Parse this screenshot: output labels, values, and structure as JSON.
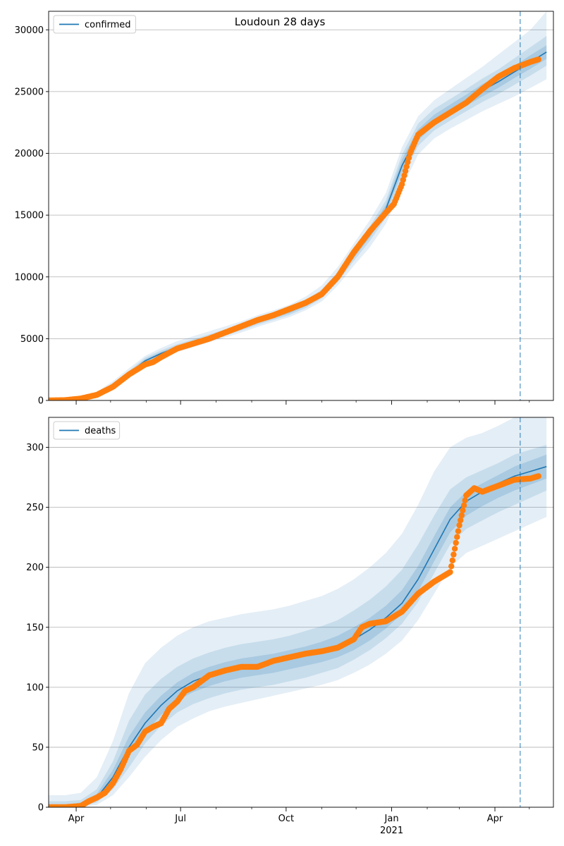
{
  "figure": {
    "title": "Loudoun 28 days"
  },
  "chart_data": [
    {
      "type": "line",
      "name": "confirmed-panel",
      "legend": [
        "confirmed"
      ],
      "legend_position": "top-left",
      "grid": "horizontal",
      "ylim": [
        0,
        31500
      ],
      "yticks": [
        0,
        5000,
        10000,
        15000,
        20000,
        25000,
        30000
      ],
      "model": {
        "name": "confirmed",
        "color": "#1f77b4",
        "x": [
          "2020-03-08",
          "2020-03-22",
          "2020-04-05",
          "2020-04-19",
          "2020-05-03",
          "2020-05-17",
          "2020-05-31",
          "2020-06-14",
          "2020-06-28",
          "2020-07-12",
          "2020-07-26",
          "2020-08-09",
          "2020-08-23",
          "2020-09-06",
          "2020-09-20",
          "2020-10-04",
          "2020-10-18",
          "2020-11-01",
          "2020-11-15",
          "2020-11-29",
          "2020-12-13",
          "2020-12-27",
          "2021-01-10",
          "2021-01-24",
          "2021-02-07",
          "2021-02-21",
          "2021-03-07",
          "2021-03-21",
          "2021-04-04",
          "2021-04-18",
          "2021-05-02",
          "2021-05-16"
        ],
        "y": [
          0,
          10,
          150,
          500,
          1200,
          2200,
          3200,
          3800,
          4300,
          4700,
          5100,
          5500,
          5900,
          6400,
          6800,
          7200,
          7800,
          8600,
          10000,
          11800,
          13500,
          15500,
          19000,
          21500,
          22700,
          23500,
          24300,
          25100,
          25800,
          26600,
          27400,
          28200
        ]
      },
      "observed": {
        "name": "observed",
        "color": "#ff7f0e",
        "x": [
          "2020-03-08",
          "2020-03-22",
          "2020-04-05",
          "2020-04-19",
          "2020-05-03",
          "2020-05-17",
          "2020-05-31",
          "2020-06-07",
          "2020-06-14",
          "2020-06-28",
          "2020-07-12",
          "2020-07-26",
          "2020-08-09",
          "2020-08-23",
          "2020-09-06",
          "2020-09-20",
          "2020-10-04",
          "2020-10-18",
          "2020-11-01",
          "2020-11-15",
          "2020-11-29",
          "2020-12-13",
          "2020-12-27",
          "2021-01-03",
          "2021-01-10",
          "2021-01-17",
          "2021-01-24",
          "2021-02-07",
          "2021-02-21",
          "2021-03-07",
          "2021-03-21",
          "2021-04-04",
          "2021-04-18",
          "2021-05-02",
          "2021-05-09"
        ],
        "y": [
          0,
          20,
          150,
          450,
          1100,
          2100,
          2900,
          3100,
          3500,
          4200,
          4600,
          5000,
          5500,
          6000,
          6500,
          6900,
          7400,
          7900,
          8600,
          10000,
          12000,
          13700,
          15200,
          15900,
          17500,
          20000,
          21500,
          22500,
          23300,
          24100,
          25200,
          26200,
          26900,
          27400,
          27600
        ]
      },
      "bands": [
        {
          "label": "outer",
          "lo": [
            0,
            0,
            80,
            380,
            1000,
            1900,
            2800,
            3400,
            3900,
            4300,
            4700,
            5100,
            5500,
            5950,
            6350,
            6750,
            7300,
            8000,
            9300,
            10900,
            12400,
            14300,
            17200,
            19900,
            21200,
            22000,
            22700,
            23400,
            24000,
            24600,
            25300,
            26000
          ],
          "hi": [
            150,
            200,
            300,
            700,
            1550,
            2600,
            3600,
            4250,
            4800,
            5200,
            5600,
            6000,
            6400,
            6900,
            7300,
            7750,
            8400,
            9300,
            10800,
            12700,
            14600,
            16800,
            20500,
            23000,
            24300,
            25200,
            26100,
            27000,
            28000,
            29000,
            30000,
            31500
          ]
        },
        {
          "label": "middle",
          "lo": [
            0,
            0,
            110,
            430,
            1080,
            2020,
            2950,
            3560,
            4060,
            4460,
            4860,
            5260,
            5660,
            6120,
            6520,
            6920,
            7480,
            8250,
            9600,
            11300,
            12900,
            14800,
            18000,
            20600,
            21850,
            22650,
            23400,
            24150,
            24800,
            25550,
            26300,
            27100
          ],
          "hi": [
            60,
            60,
            200,
            580,
            1330,
            2390,
            3450,
            4050,
            4550,
            4950,
            5350,
            5750,
            6150,
            6660,
            7060,
            7470,
            8110,
            8960,
            10400,
            12300,
            14100,
            16200,
            19900,
            22400,
            23600,
            24400,
            25200,
            26050,
            26800,
            27700,
            28600,
            29500
          ]
        },
        {
          "label": "inner",
          "lo": [
            0,
            0,
            130,
            460,
            1140,
            2110,
            3080,
            3680,
            4180,
            4580,
            4980,
            5380,
            5780,
            6260,
            6660,
            7060,
            7640,
            8430,
            9800,
            11550,
            13200,
            15150,
            18500,
            21050,
            22270,
            23050,
            23850,
            24600,
            25300,
            26100,
            26850,
            27650
          ],
          "hi": [
            25,
            25,
            170,
            540,
            1260,
            2290,
            3320,
            3920,
            4420,
            4820,
            5220,
            5620,
            6020,
            6540,
            6940,
            7340,
            7960,
            8770,
            10200,
            12050,
            13800,
            15850,
            19500,
            21950,
            23130,
            23950,
            24750,
            25600,
            26300,
            27100,
            27950,
            28750
          ]
        }
      ]
    },
    {
      "type": "line",
      "name": "deaths-panel",
      "legend": [
        "deaths"
      ],
      "legend_position": "top-left",
      "grid": "horizontal",
      "ylim": [
        0,
        325
      ],
      "yticks": [
        0,
        50,
        100,
        150,
        200,
        250,
        300
      ],
      "xtick_labels": [
        "Apr",
        "Jul",
        "Oct",
        "Jan",
        "Apr"
      ],
      "xtick_sublabel": "2021",
      "model": {
        "name": "deaths",
        "color": "#1f77b4",
        "x": [
          "2020-03-08",
          "2020-03-22",
          "2020-04-05",
          "2020-04-19",
          "2020-05-03",
          "2020-05-17",
          "2020-05-31",
          "2020-06-14",
          "2020-06-28",
          "2020-07-12",
          "2020-07-26",
          "2020-08-09",
          "2020-08-23",
          "2020-09-06",
          "2020-09-20",
          "2020-10-04",
          "2020-10-18",
          "2020-11-01",
          "2020-11-15",
          "2020-11-29",
          "2020-12-13",
          "2020-12-27",
          "2021-01-10",
          "2021-01-24",
          "2021-02-07",
          "2021-02-21",
          "2021-03-07",
          "2021-03-21",
          "2021-04-04",
          "2021-04-18",
          "2021-05-02",
          "2021-05-16"
        ],
        "y": [
          0,
          0,
          2,
          8,
          25,
          50,
          70,
          85,
          97,
          105,
          110,
          114,
          117,
          119,
          121,
          124,
          127,
          130,
          134,
          140,
          148,
          158,
          170,
          190,
          215,
          240,
          255,
          263,
          270,
          276,
          280,
          284
        ]
      },
      "observed": {
        "name": "observed",
        "color": "#ff7f0e",
        "x": [
          "2020-03-08",
          "2020-03-22",
          "2020-04-05",
          "2020-04-12",
          "2020-04-19",
          "2020-04-26",
          "2020-05-03",
          "2020-05-10",
          "2020-05-17",
          "2020-05-24",
          "2020-05-31",
          "2020-06-07",
          "2020-06-14",
          "2020-06-21",
          "2020-06-28",
          "2020-07-05",
          "2020-07-12",
          "2020-07-26",
          "2020-08-09",
          "2020-08-23",
          "2020-09-06",
          "2020-09-20",
          "2020-10-04",
          "2020-10-18",
          "2020-11-01",
          "2020-11-15",
          "2020-11-29",
          "2020-12-06",
          "2020-12-13",
          "2020-12-27",
          "2021-01-10",
          "2021-01-24",
          "2021-02-07",
          "2021-02-21",
          "2021-03-01",
          "2021-03-07",
          "2021-03-14",
          "2021-03-21",
          "2021-04-04",
          "2021-04-18",
          "2021-05-02",
          "2021-05-09"
        ],
        "y": [
          0,
          0,
          1,
          5,
          8,
          12,
          20,
          32,
          47,
          52,
          63,
          67,
          70,
          82,
          88,
          97,
          100,
          110,
          114,
          117,
          117,
          122,
          125,
          128,
          130,
          133,
          140,
          150,
          153,
          155,
          163,
          178,
          188,
          196,
          235,
          260,
          266,
          263,
          268,
          273,
          274,
          276
        ]
      },
      "bands": [
        {
          "label": "outer",
          "lo": [
            0,
            0,
            0,
            2,
            10,
            25,
            42,
            56,
            67,
            74,
            80,
            84,
            87,
            90,
            93,
            96,
            99,
            102,
            106,
            112,
            119,
            128,
            139,
            156,
            178,
            200,
            212,
            218,
            224,
            230,
            236,
            242
          ],
          "hi": [
            10,
            10,
            12,
            25,
            55,
            95,
            120,
            133,
            143,
            150,
            155,
            158,
            161,
            163,
            165,
            168,
            172,
            176,
            182,
            190,
            200,
            212,
            228,
            252,
            280,
            300,
            308,
            312,
            318,
            325,
            325,
            325
          ]
        },
        {
          "label": "middle",
          "lo": [
            0,
            0,
            0,
            4,
            15,
            33,
            53,
            68,
            79,
            86,
            91,
            95,
            98,
            100,
            102,
            105,
            108,
            112,
            116,
            123,
            131,
            141,
            153,
            171,
            195,
            219,
            232,
            239,
            246,
            252,
            258,
            264
          ],
          "hi": [
            5,
            5,
            6,
            15,
            38,
            72,
            94,
            107,
            117,
            124,
            129,
            133,
            136,
            138,
            140,
            143,
            147,
            151,
            156,
            164,
            173,
            184,
            198,
            219,
            243,
            265,
            275,
            281,
            287,
            294,
            298,
            302
          ]
        },
        {
          "label": "inner",
          "lo": [
            0,
            0,
            1,
            6,
            20,
            42,
            62,
            77,
            89,
            96,
            101,
            105,
            108,
            110,
            112,
            115,
            118,
            121,
            125,
            131,
            139,
            149,
            161,
            180,
            205,
            229,
            243,
            251,
            258,
            264,
            269,
            274
          ],
          "hi": [
            2,
            2,
            4,
            11,
            31,
            59,
            79,
            93,
            104,
            112,
            117,
            121,
            124,
            126,
            128,
            131,
            134,
            138,
            143,
            150,
            158,
            168,
            181,
            201,
            226,
            250,
            263,
            270,
            277,
            284,
            289,
            294
          ]
        }
      ]
    }
  ],
  "forecast_line_date": "2021-04-23",
  "x_range": [
    "2020-03-08",
    "2021-05-22"
  ]
}
